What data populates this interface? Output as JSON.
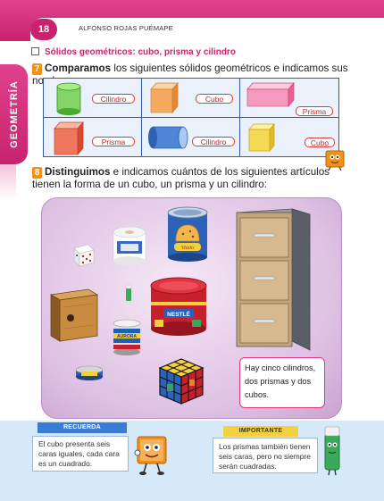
{
  "header": {
    "page_number": "18",
    "author": "ALFONSO ROJAS PUÉMAPE"
  },
  "side_tab": {
    "label": "GEOMETRÍA"
  },
  "section": {
    "title": "Sólidos geométricos: cubo, prisma y cilindro"
  },
  "q7": {
    "number": "7",
    "lead": "Comparamos",
    "rest": " los siguientes sólidos geométricos e indicamos sus nombres:",
    "cells": [
      {
        "shape": "cylinder-icon",
        "label": "Cilindro"
      },
      {
        "shape": "cube-icon",
        "label": "Cubo"
      },
      {
        "shape": "prism-icon",
        "label": "Prisma"
      },
      {
        "shape": "prism-icon",
        "label": "Prisma"
      },
      {
        "shape": "cylinder-icon",
        "label": "Cilindro"
      },
      {
        "shape": "cube-icon",
        "label": "Cubo"
      }
    ]
  },
  "q8": {
    "number": "8",
    "lead": "Distinguimos",
    "rest": " e indicamos cuántos de los siguientes artículos tienen la forma de un cubo, un prisma y un cilindro:",
    "objects": {
      "tin_label": "Vizzio",
      "box_label": "NESTLÉ",
      "can_label": "AURORA"
    },
    "answer": "Hay cinco cilindros, dos prismas y dos cubos."
  },
  "notes": {
    "recuerda": {
      "tag": "RECUERDA",
      "text": "El cubo presenta seis caras iguales, cada cara es un cuadrado."
    },
    "importante": {
      "tag": "IMPORTANTE",
      "text": "Los prismas también tienen seis caras, pero no siempre serán cuadradas."
    }
  },
  "colors": {
    "magenta": "#c9236f",
    "orange": "#f29118",
    "grid_blue": "#3a5b9a",
    "band_blue": "#d6e9f8"
  }
}
